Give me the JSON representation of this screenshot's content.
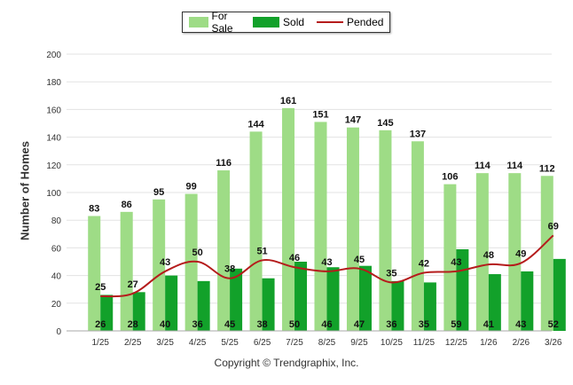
{
  "chart_data": {
    "type": "bar",
    "title": "",
    "xlabel": "",
    "ylabel": "Number of Homes",
    "ylim": [
      0,
      200
    ],
    "yticks": [
      0,
      20,
      40,
      60,
      80,
      100,
      120,
      140,
      160,
      180,
      200
    ],
    "grid": true,
    "legend_position": "top-center",
    "categories": [
      "1/25",
      "2/25",
      "3/25",
      "4/25",
      "5/25",
      "6/25",
      "7/25",
      "8/25",
      "9/25",
      "10/25",
      "11/25",
      "12/25",
      "1/26",
      "2/26",
      "3/26"
    ],
    "series": [
      {
        "name": "For Sale",
        "kind": "bar",
        "color": "#9edc86",
        "values": [
          83,
          86,
          95,
          99,
          116,
          144,
          161,
          151,
          147,
          145,
          137,
          106,
          114,
          114,
          112
        ]
      },
      {
        "name": "Sold",
        "kind": "bar",
        "color": "#12a12a",
        "values": [
          26,
          28,
          40,
          36,
          45,
          38,
          50,
          46,
          47,
          36,
          35,
          59,
          41,
          43,
          52
        ]
      },
      {
        "name": "Pended",
        "kind": "line",
        "color": "#b51c1c",
        "values": [
          25,
          27,
          43,
          50,
          38,
          51,
          46,
          43,
          45,
          35,
          42,
          43,
          48,
          49,
          69
        ]
      }
    ]
  },
  "copyright": "Copyright © Trendgraphix, Inc."
}
